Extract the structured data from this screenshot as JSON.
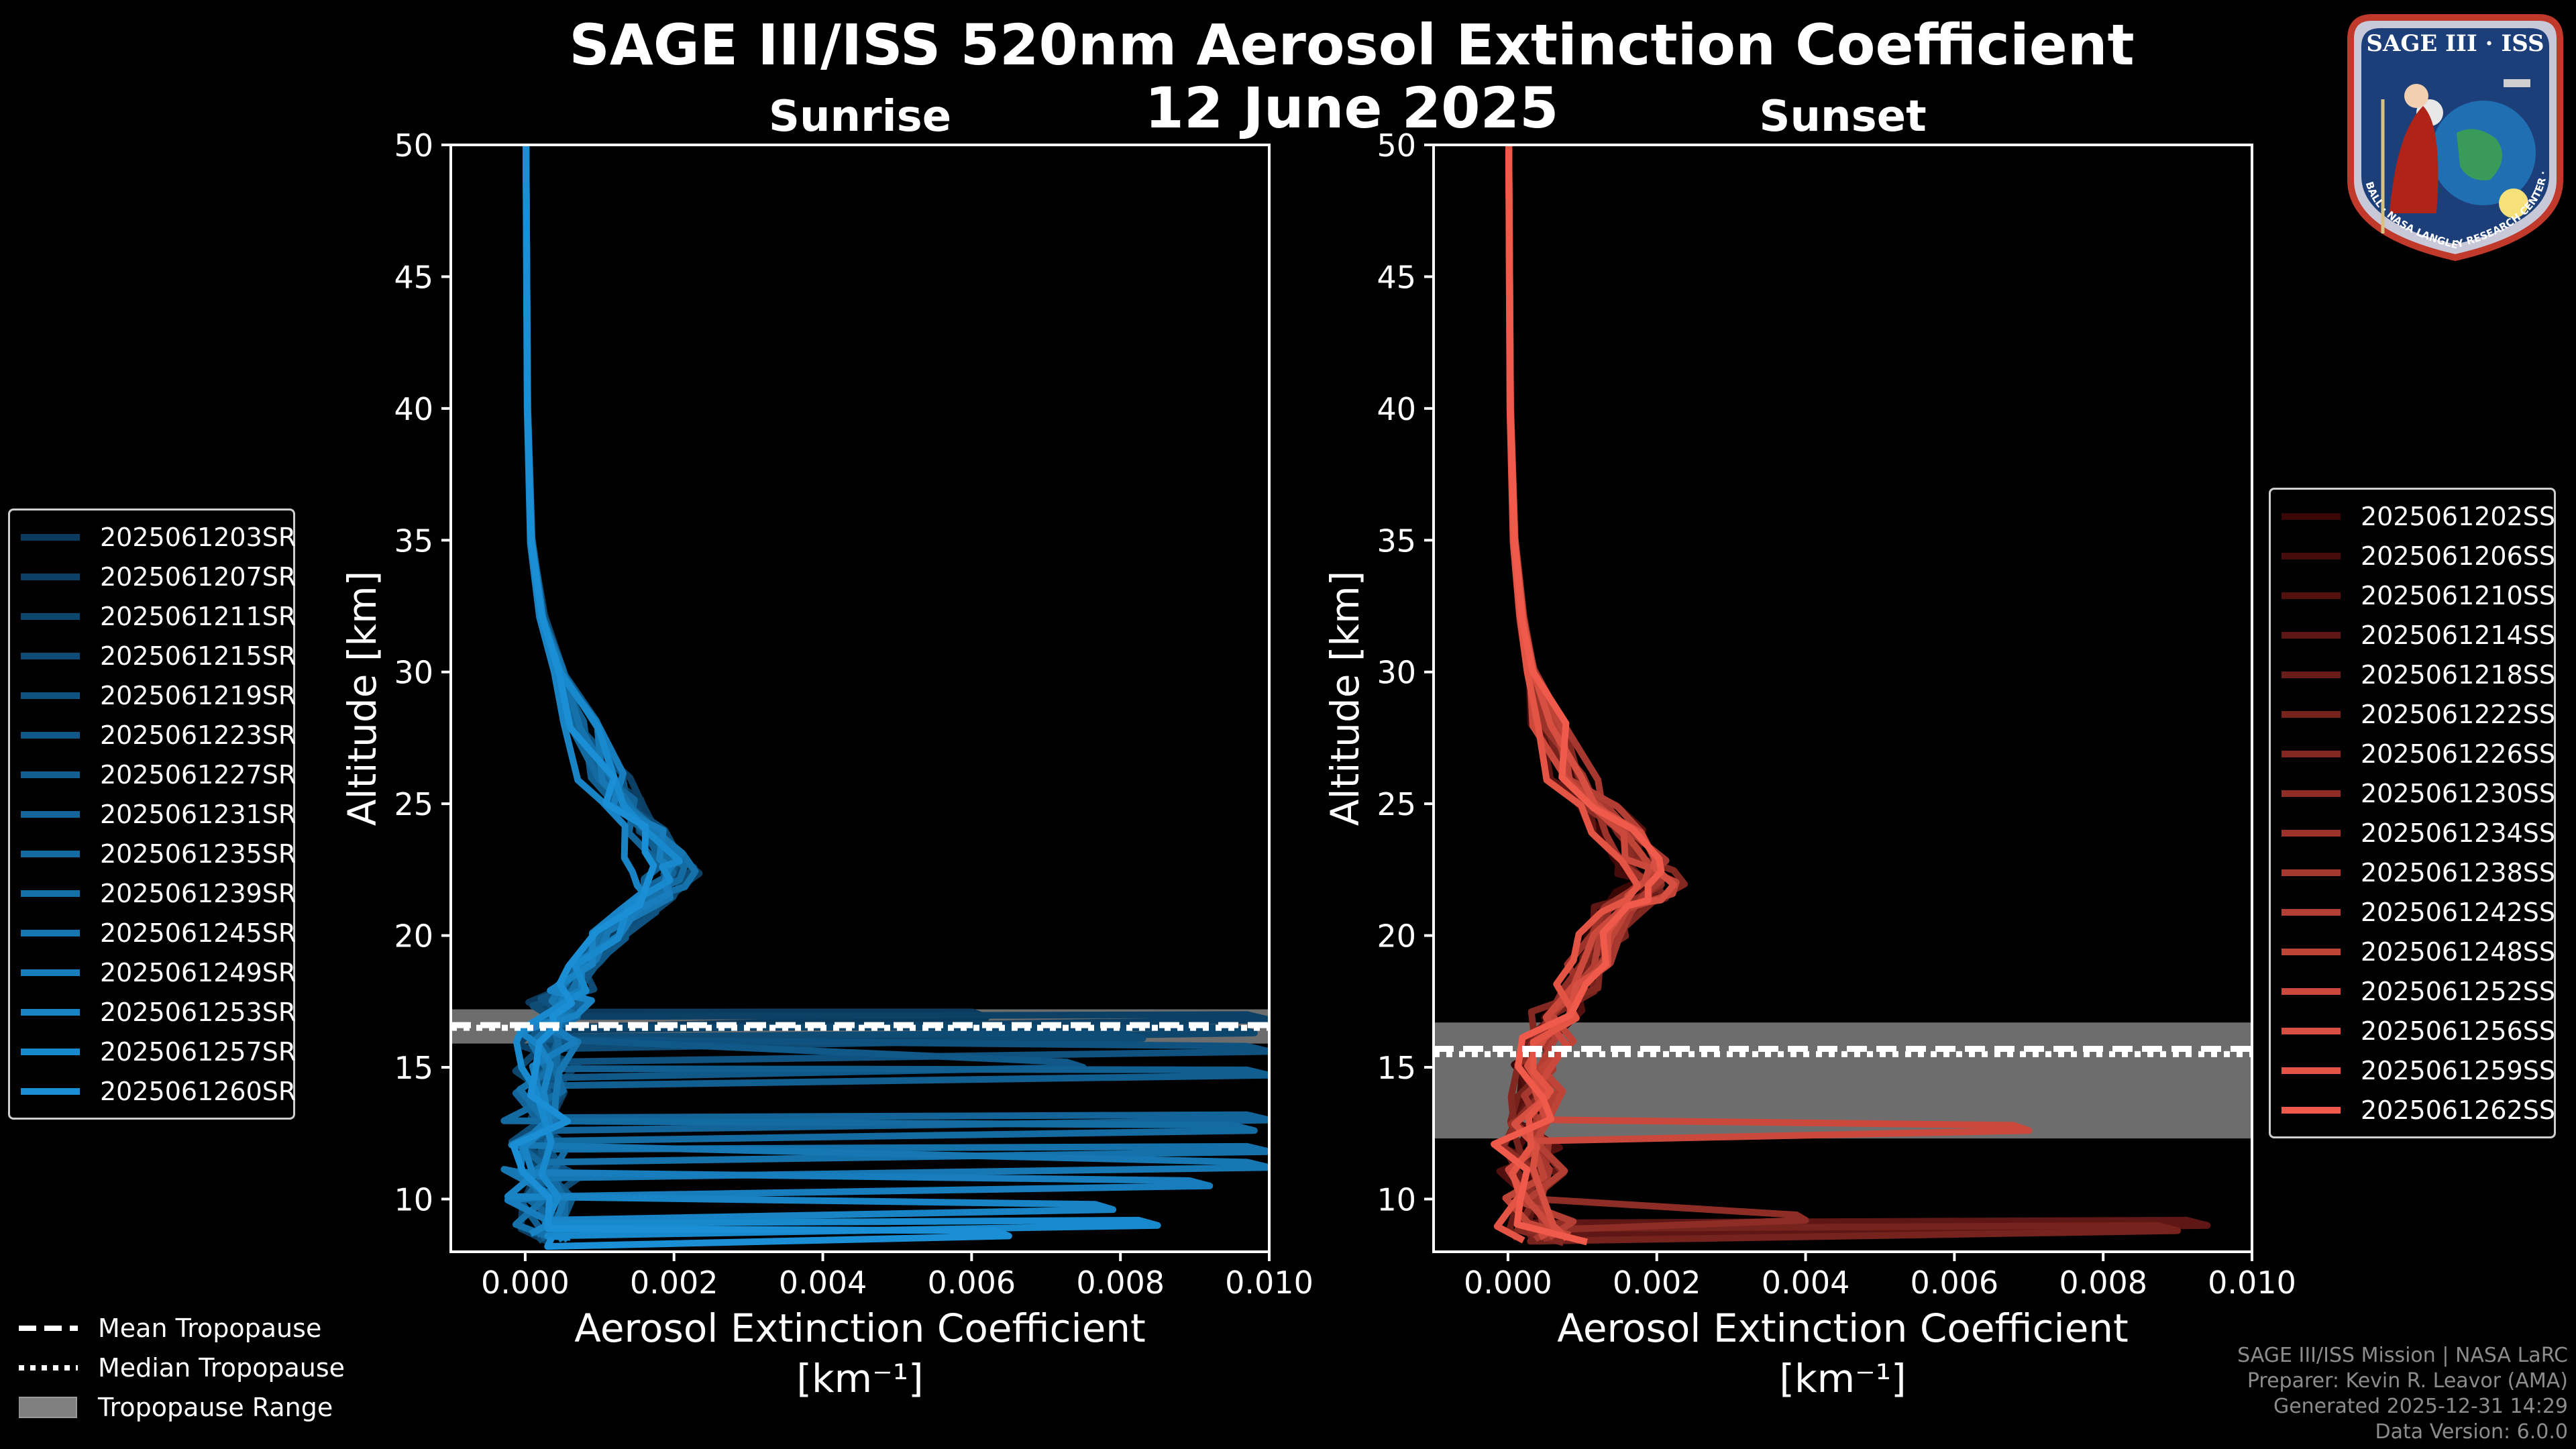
{
  "title_line1": "SAGE III/ISS 520nm Aerosol Extinction Coefficient",
  "title_line2": "12 June 2025",
  "sunrise_legend": [
    "2025061203SR",
    "2025061207SR",
    "2025061211SR",
    "2025061215SR",
    "2025061219SR",
    "2025061223SR",
    "2025061227SR",
    "2025061231SR",
    "2025061235SR",
    "2025061239SR",
    "2025061245SR",
    "2025061249SR",
    "2025061253SR",
    "2025061257SR",
    "2025061260SR"
  ],
  "sunset_legend": [
    "2025061202SS",
    "2025061206SS",
    "2025061210SS",
    "2025061214SS",
    "2025061218SS",
    "2025061222SS",
    "2025061226SS",
    "2025061230SS",
    "2025061234SS",
    "2025061238SS",
    "2025061242SS",
    "2025061248SS",
    "2025061252SS",
    "2025061256SS",
    "2025061259SS",
    "2025061262SS"
  ],
  "tropopause_legend": {
    "mean": "Mean Tropopause",
    "median": "Median Tropopause",
    "range": "Tropopause Range"
  },
  "credits": {
    "line1": "SAGE III/ISS Mission | NASA LaRC",
    "line2": "Preparer: Kevin R. Leavor (AMA)",
    "line3": "Generated 2025-12-31 14:29",
    "line4": "Data Version: 6.0.0"
  },
  "logo": {
    "name": "SAGE III · ISS",
    "ring_text": "BALL · NASA LANGLEY RESEARCH CENTER · TAS · ESA"
  },
  "colors": {
    "sunrise_dark": "#0b3a5c",
    "sunrise_light": "#1a8fd6",
    "sunset_dark": "#3a0606",
    "sunset_light": "#ef5a4a",
    "trop_range": "#808080",
    "axes": "#ffffff",
    "background": "#000000"
  },
  "chart_data": [
    {
      "type": "line",
      "panel": "sunrise",
      "title": "Sunrise",
      "xlabel": "Aerosol Extinction Coefficient",
      "xunit": "[km⁻¹]",
      "ylabel": "Altitude [km]",
      "xlim": [
        -0.001,
        0.01
      ],
      "ylim": [
        8,
        50
      ],
      "xticks": [
        0.0,
        0.002,
        0.004,
        0.006,
        0.008,
        0.01
      ],
      "xtick_labels": [
        "0.000",
        "0.002",
        "0.004",
        "0.006",
        "0.008",
        "0.010"
      ],
      "yticks": [
        10,
        15,
        20,
        25,
        30,
        35,
        40,
        45,
        50
      ],
      "ytick_labels": [
        "10",
        "15",
        "20",
        "25",
        "30",
        "35",
        "40",
        "45",
        "50"
      ],
      "tropopause": {
        "mean": 16.6,
        "median": 16.5,
        "range": [
          15.9,
          17.2
        ]
      },
      "series_count": 15,
      "profile_alt_km": [
        50,
        45,
        40,
        35,
        32,
        30,
        28,
        26,
        25,
        24,
        23,
        22.5,
        22,
        21.5,
        21,
        20,
        19,
        18,
        17.5,
        17,
        16.5,
        16,
        15,
        14,
        13,
        12,
        11,
        10,
        9,
        8.5
      ],
      "profile_ext": [
        1e-05,
        2e-05,
        3e-05,
        8e-05,
        0.00022,
        0.00045,
        0.00072,
        0.00105,
        0.0013,
        0.00158,
        0.00178,
        0.00186,
        0.0018,
        0.00162,
        0.0014,
        0.00108,
        0.0008,
        0.0006,
        0.00048,
        0.0004,
        0.0003,
        0.00025,
        0.00022,
        0.0002,
        0.00018,
        0.00018,
        0.0002,
        0.00022,
        0.00025,
        0.0003
      ],
      "spikes": [
        {
          "series": 0,
          "alt_km": 16.9,
          "ext": 0.0062
        },
        {
          "series": 1,
          "alt_km": 16.8,
          "ext": 0.01
        },
        {
          "series": 2,
          "alt_km": 16.3,
          "ext": 0.0098
        },
        {
          "series": 3,
          "alt_km": 16.1,
          "ext": 0.0083
        },
        {
          "series": 4,
          "alt_km": 15.6,
          "ext": 0.01
        },
        {
          "series": 5,
          "alt_km": 15.0,
          "ext": 0.0075
        },
        {
          "series": 6,
          "alt_km": 14.7,
          "ext": 0.01
        },
        {
          "series": 7,
          "alt_km": 13.0,
          "ext": 0.01
        },
        {
          "series": 8,
          "alt_km": 12.6,
          "ext": 0.0098
        },
        {
          "series": 9,
          "alt_km": 11.8,
          "ext": 0.01
        },
        {
          "series": 10,
          "alt_km": 11.2,
          "ext": 0.01
        },
        {
          "series": 11,
          "alt_km": 10.5,
          "ext": 0.0092
        },
        {
          "series": 12,
          "alt_km": 9.6,
          "ext": 0.0079
        },
        {
          "series": 13,
          "alt_km": 9.0,
          "ext": 0.0085
        },
        {
          "series": 14,
          "alt_km": 8.6,
          "ext": 0.0065
        }
      ]
    },
    {
      "type": "line",
      "panel": "sunset",
      "title": "Sunset",
      "xlabel": "Aerosol Extinction Coefficient",
      "xunit": "[km⁻¹]",
      "ylabel": "Altitude [km]",
      "xlim": [
        -0.001,
        0.01
      ],
      "ylim": [
        8,
        50
      ],
      "xticks": [
        0.0,
        0.002,
        0.004,
        0.006,
        0.008,
        0.01
      ],
      "xtick_labels": [
        "0.000",
        "0.002",
        "0.004",
        "0.006",
        "0.008",
        "0.010"
      ],
      "yticks": [
        10,
        15,
        20,
        25,
        30,
        35,
        40,
        45,
        50
      ],
      "ytick_labels": [
        "10",
        "15",
        "20",
        "25",
        "30",
        "35",
        "40",
        "45",
        "50"
      ],
      "tropopause": {
        "mean": 15.7,
        "median": 15.5,
        "range": [
          12.3,
          16.7
        ]
      },
      "series_count": 16,
      "profile_alt_km": [
        50,
        45,
        40,
        35,
        32,
        30,
        28,
        26,
        25,
        24,
        23,
        22.5,
        22,
        21.5,
        21,
        20,
        19,
        18,
        17,
        16,
        15,
        14,
        13,
        12,
        11,
        10,
        9,
        8.5
      ],
      "profile_ext": [
        1e-05,
        2e-05,
        3e-05,
        8e-05,
        0.00018,
        0.0003,
        0.00055,
        0.00085,
        0.0011,
        0.0014,
        0.00165,
        0.00178,
        0.00185,
        0.00172,
        0.0015,
        0.00125,
        0.00105,
        0.00085,
        0.00065,
        0.00048,
        0.00038,
        0.00032,
        0.0003,
        0.00028,
        0.00026,
        0.0003,
        0.0004,
        0.0006
      ],
      "spikes": [
        {
          "series": 12,
          "alt_km": 12.6,
          "ext": 0.007
        },
        {
          "series": 3,
          "alt_km": 9.0,
          "ext": 0.0094
        },
        {
          "series": 5,
          "alt_km": 8.8,
          "ext": 0.009
        },
        {
          "series": 7,
          "alt_km": 9.2,
          "ext": 0.004
        }
      ]
    }
  ]
}
